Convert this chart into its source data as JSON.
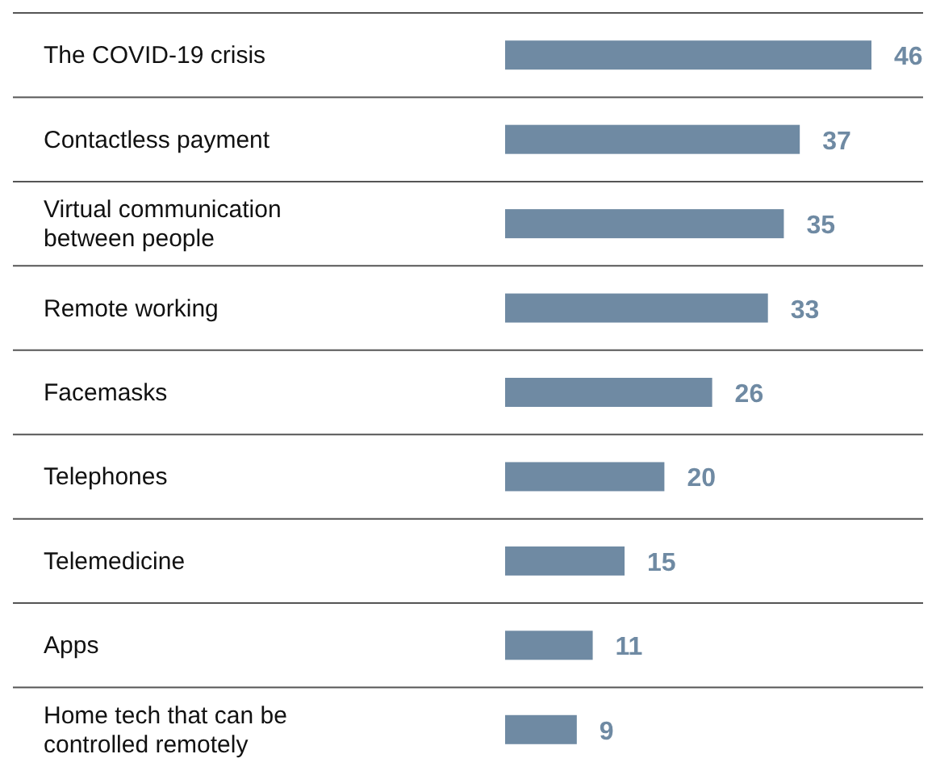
{
  "chart_data": {
    "type": "bar",
    "orientation": "horizontal",
    "categories": [
      "The COVID-19 crisis",
      "Contactless payment",
      "Virtual communication between people",
      "Remote working",
      "Facemasks",
      "Telephones",
      "Telemedicine",
      "Apps",
      "Home tech that can be controlled remotely"
    ],
    "values": [
      46,
      37,
      35,
      33,
      26,
      20,
      15,
      11,
      9
    ],
    "color": "#6f8aa3",
    "data_labels": true,
    "grid": "y"
  }
}
